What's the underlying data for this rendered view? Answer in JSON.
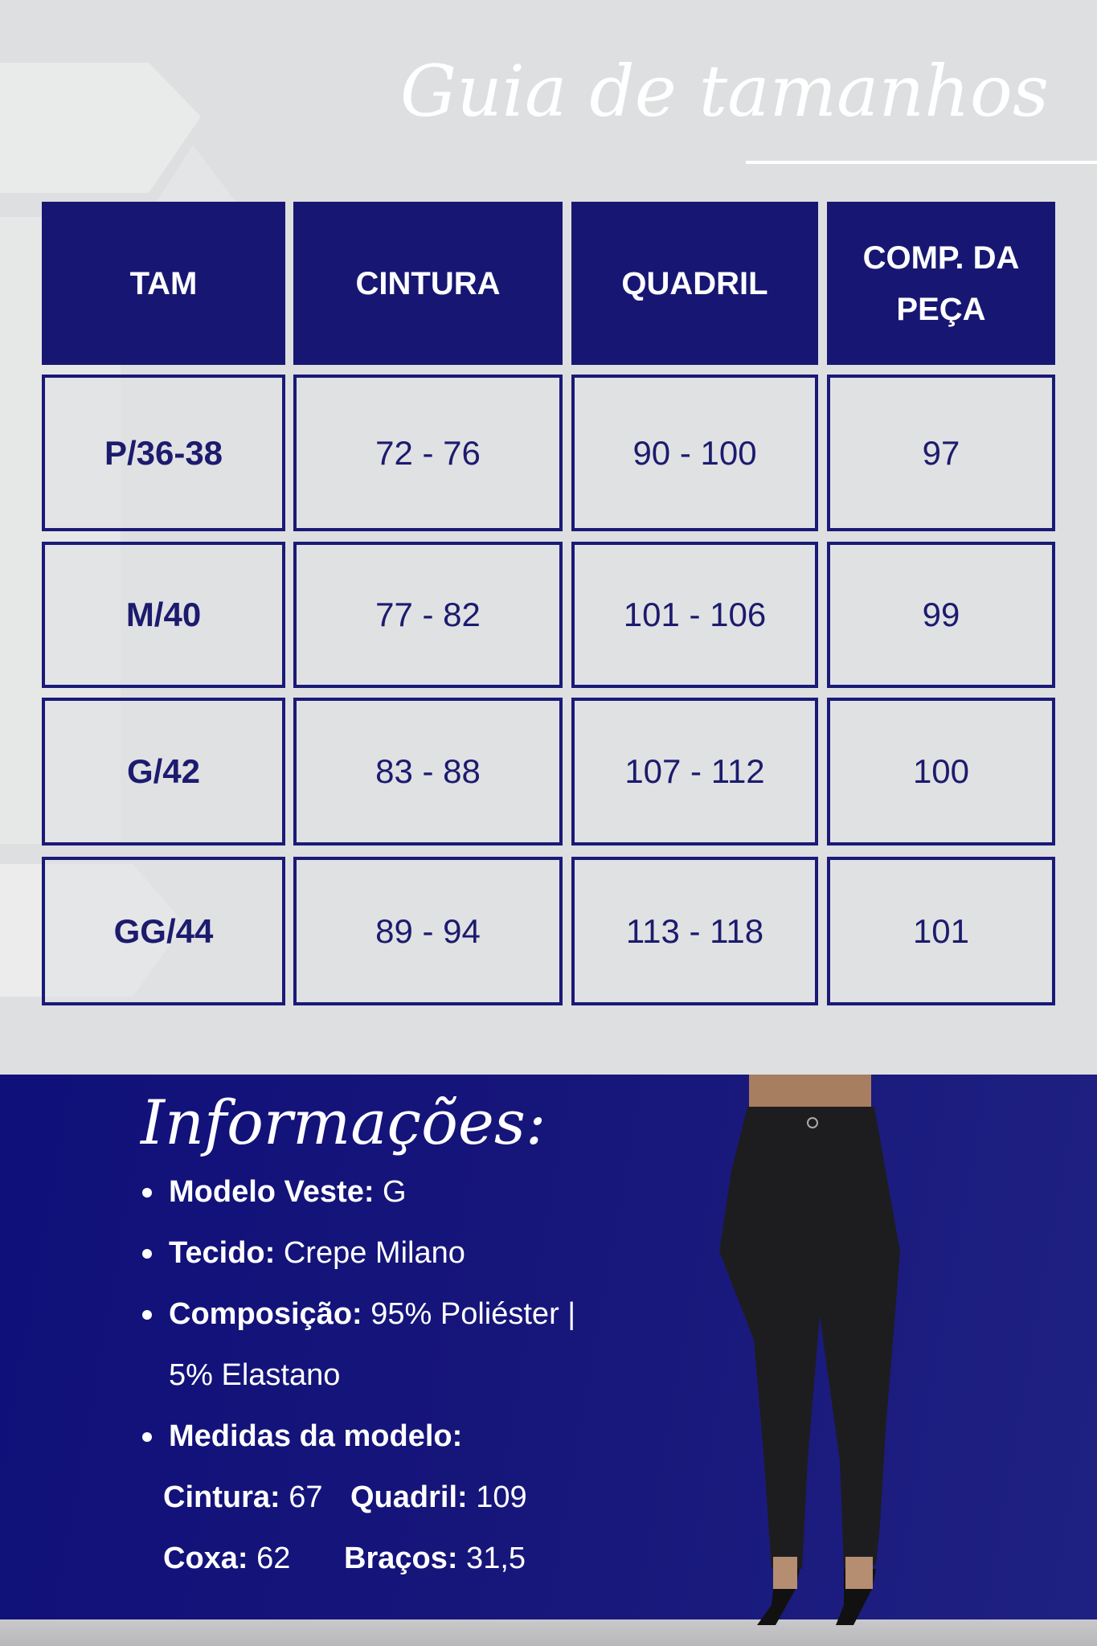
{
  "title": "Guia de tamanhos",
  "table": {
    "headers": [
      "TAM",
      "CINTURA",
      "QUADRIL",
      "COMP. DA PEÇA"
    ],
    "rows": [
      [
        "P/36-38",
        "72 - 76",
        "90 - 100",
        "97"
      ],
      [
        "M/40",
        "77 - 82",
        "101 - 106",
        "99"
      ],
      [
        "G/42",
        "83 - 88",
        "107 - 112",
        "100"
      ],
      [
        "GG/44",
        "89 - 94",
        "113 - 118",
        "101"
      ]
    ]
  },
  "info": {
    "title": "Informações:",
    "modelo_label": "Modelo Veste:",
    "modelo_value": " G",
    "tecido_label": "Tecido:",
    "tecido_value": " Crepe Milano",
    "composicao_label": "Composição:",
    "composicao_value": " 95% Poliéster |",
    "composicao_value2": "5% Elastano",
    "medidas_label": "Medidas da modelo:",
    "cintura_label": "Cintura:",
    "cintura_value": " 67",
    "quadril_label": "Quadril:",
    "quadril_value": " 109",
    "coxa_label": "Coxa:",
    "coxa_value": " 62",
    "bracos_label": "Braços:",
    "bracos_value": " 31,5"
  },
  "colors": {
    "navy": "#171773",
    "background": "#dedfe0",
    "text": "#1c1b6e"
  },
  "image": "model-wearing-black-pants"
}
